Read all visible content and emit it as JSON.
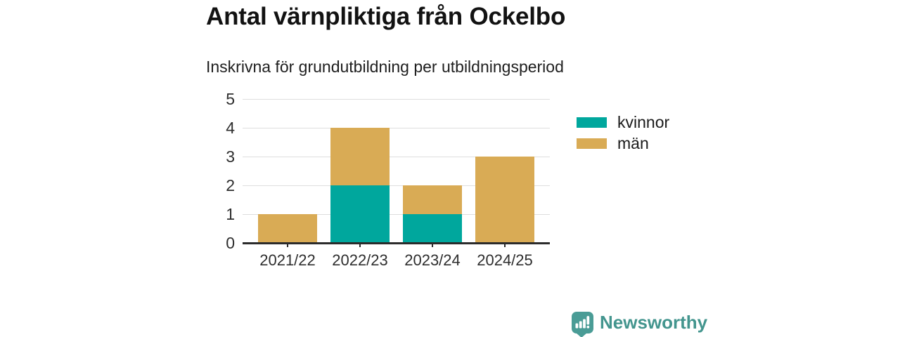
{
  "title": "Antal värnpliktiga från Ockelbo",
  "subtitle": "Inskrivna för grundutbildning per utbildningsperiod",
  "chart_data": {
    "type": "bar",
    "stacked": true,
    "title": "Antal värnpliktiga från Ockelbo",
    "subtitle": "Inskrivna för grundutbildning per utbildningsperiod",
    "categories": [
      "2021/22",
      "2022/23",
      "2023/24",
      "2024/25"
    ],
    "series": [
      {
        "name": "kvinnor",
        "color": "#00a79d",
        "values": [
          0,
          2,
          1,
          0
        ]
      },
      {
        "name": "män",
        "color": "#d9ab55",
        "values": [
          1,
          2,
          1,
          3
        ]
      }
    ],
    "totals": [
      1,
      4,
      2,
      3
    ],
    "xlabel": "",
    "ylabel": "",
    "ylim": [
      0,
      5
    ],
    "yticks": [
      0,
      1,
      2,
      3,
      4,
      5
    ],
    "grid": true,
    "grid_color": "#dedede",
    "axis_color": "#2b2b2b",
    "legend_position": "right"
  },
  "branding": {
    "logo_text": "Newsworthy",
    "logo_icon": "newsworthy-bar-chart-bubble-icon",
    "logo_color": "#4a9c96",
    "logo_text_color": "#43958e"
  }
}
